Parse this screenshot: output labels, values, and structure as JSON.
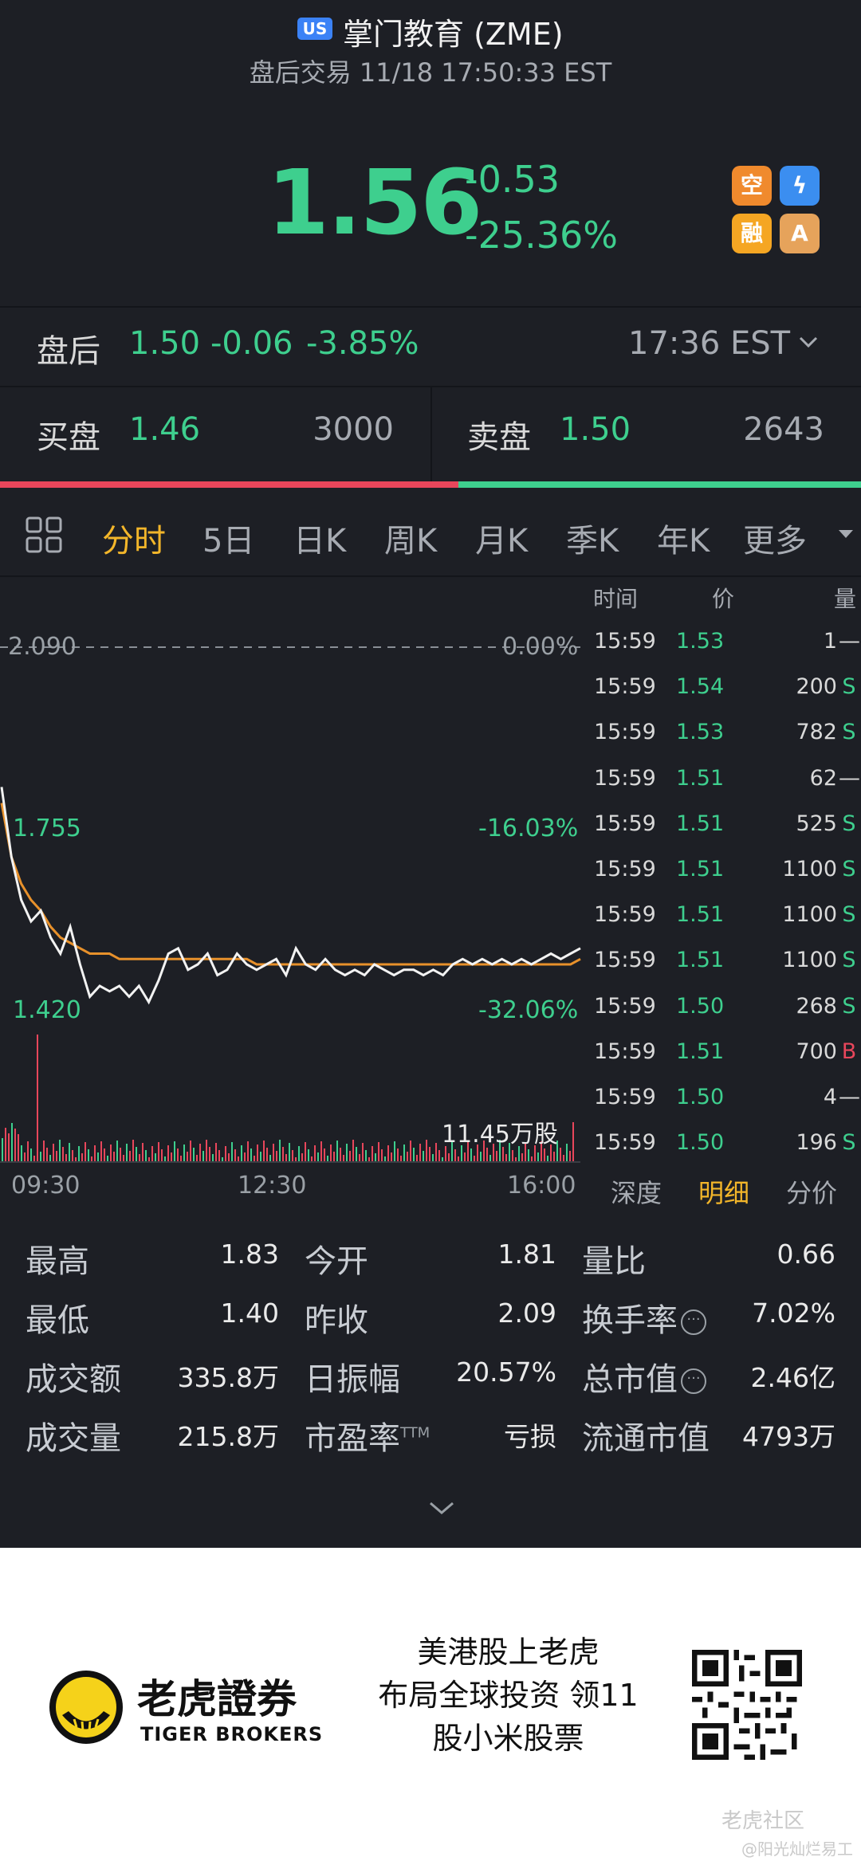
{
  "header": {
    "market_badge": "US",
    "title": "掌门教育 (ZME)",
    "subtitle": "盘后交易 11/18 17:50:33 EST",
    "price": "1.56",
    "change": "-0.53",
    "change_pct": "-25.36%",
    "badges": [
      {
        "label": "空",
        "color": "#f08a2d"
      },
      {
        "label": "ϟ",
        "color": "#3b8ef0"
      },
      {
        "label": "融",
        "color": "#f5a623"
      },
      {
        "label": "A",
        "color": "#e6a35b"
      }
    ]
  },
  "after_hours": {
    "label": "盘后",
    "price": "1.50",
    "change": "-0.06",
    "change_pct": "-3.85%",
    "time": "17:36 EST"
  },
  "bid_ask": {
    "bid_label": "买盘",
    "bid_price": "1.46",
    "bid_vol": "3000",
    "ask_label": "卖盘",
    "ask_price": "1.50",
    "ask_vol": "2643",
    "bid_ratio": 0.532
  },
  "tabs": [
    "分时",
    "5日",
    "日K",
    "周K",
    "月K",
    "季K",
    "年K",
    "更多"
  ],
  "active_tab": "分时",
  "chart_data": {
    "type": "line",
    "y_top": 2.09,
    "y_mid": 1.755,
    "y_bottom": 1.42,
    "y_top_label": "2.090",
    "y_mid_label": "1.755",
    "y_bottom_label": "1.420",
    "pct_top": "0.00%",
    "pct_mid": "-16.03%",
    "pct_bottom": "-32.06%",
    "x_labels": [
      "09:30",
      "12:30",
      "16:00"
    ],
    "volume_label": "11.45万股",
    "series": [
      {
        "values": [
          1.83,
          1.7,
          1.62,
          1.58,
          1.6,
          1.55,
          1.52,
          1.57,
          1.5,
          1.44,
          1.46,
          1.45,
          1.46,
          1.44,
          1.46,
          1.43,
          1.47,
          1.52,
          1.53,
          1.49,
          1.5,
          1.52,
          1.48,
          1.49,
          1.52,
          1.5,
          1.49,
          1.5,
          1.51,
          1.48,
          1.53,
          1.5,
          1.49,
          1.51,
          1.49,
          1.48,
          1.49,
          1.48,
          1.5,
          1.49,
          1.48,
          1.49,
          1.49,
          1.48,
          1.49,
          1.48,
          1.5,
          1.51,
          1.5,
          1.51,
          1.5,
          1.51,
          1.5,
          1.51,
          1.5,
          1.51,
          1.52,
          1.51,
          1.52,
          1.53
        ]
      },
      {
        "values": [
          1.8,
          1.7,
          1.65,
          1.62,
          1.6,
          1.57,
          1.55,
          1.54,
          1.53,
          1.52,
          1.52,
          1.52,
          1.51,
          1.51,
          1.51,
          1.51,
          1.51,
          1.51,
          1.51,
          1.51,
          1.51,
          1.51,
          1.51,
          1.51,
          1.51,
          1.51,
          1.5,
          1.5,
          1.5,
          1.5,
          1.5,
          1.5,
          1.5,
          1.5,
          1.5,
          1.5,
          1.5,
          1.5,
          1.5,
          1.5,
          1.5,
          1.5,
          1.5,
          1.5,
          1.5,
          1.5,
          1.5,
          1.5,
          1.5,
          1.5,
          1.5,
          1.5,
          1.5,
          1.5,
          1.5,
          1.5,
          1.5,
          1.5,
          1.5,
          1.51
        ]
      }
    ]
  },
  "ticks": {
    "headers": [
      "时间",
      "价",
      "量"
    ],
    "rows": [
      {
        "time": "15:59",
        "price": "1.53",
        "vol": "1",
        "side": "—"
      },
      {
        "time": "15:59",
        "price": "1.54",
        "vol": "200",
        "side": "S"
      },
      {
        "time": "15:59",
        "price": "1.53",
        "vol": "782",
        "side": "S"
      },
      {
        "time": "15:59",
        "price": "1.51",
        "vol": "62",
        "side": "—"
      },
      {
        "time": "15:59",
        "price": "1.51",
        "vol": "525",
        "side": "S"
      },
      {
        "time": "15:59",
        "price": "1.51",
        "vol": "1100",
        "side": "S"
      },
      {
        "time": "15:59",
        "price": "1.51",
        "vol": "1100",
        "side": "S"
      },
      {
        "time": "15:59",
        "price": "1.51",
        "vol": "1100",
        "side": "S"
      },
      {
        "time": "15:59",
        "price": "1.50",
        "vol": "268",
        "side": "S"
      },
      {
        "time": "15:59",
        "price": "1.51",
        "vol": "700",
        "side": "B"
      },
      {
        "time": "15:59",
        "price": "1.50",
        "vol": "4",
        "side": "—"
      },
      {
        "time": "15:59",
        "price": "1.50",
        "vol": "196",
        "side": "S"
      }
    ],
    "sub_tabs": [
      "深度",
      "明细",
      "分价"
    ],
    "active_sub_tab": "明细"
  },
  "stats": [
    [
      {
        "label": "最高",
        "value": "1.83"
      },
      {
        "label": "今开",
        "value": "1.81"
      },
      {
        "label": "量比",
        "value": "0.66"
      }
    ],
    [
      {
        "label": "最低",
        "value": "1.40"
      },
      {
        "label": "昨收",
        "value": "2.09"
      },
      {
        "label": "换手率",
        "value": "7.02%",
        "info": true
      }
    ],
    [
      {
        "label": "成交额",
        "value": "335.8万"
      },
      {
        "label": "日振幅",
        "value": "20.57%"
      },
      {
        "label": "总市值",
        "value": "2.46亿",
        "info": true
      }
    ],
    [
      {
        "label": "成交量",
        "value": "215.8万"
      },
      {
        "label": "市盈率",
        "sup": "TTM",
        "value": "亏损"
      },
      {
        "label": "流通市值",
        "value": "4793万"
      }
    ]
  ],
  "footer": {
    "brand_cn": "老虎證券",
    "brand_en": "TIGER BROKERS",
    "slogan": [
      "美港股上老虎",
      "布局全球投资 领11",
      "股小米股票"
    ],
    "watermark1": "老虎社区",
    "watermark2": "@阳光灿烂易工"
  },
  "colors": {
    "up": "#e8465b",
    "down": "#3ecf8e",
    "accent": "#f3b62a",
    "avg_line": "#e8912b"
  }
}
